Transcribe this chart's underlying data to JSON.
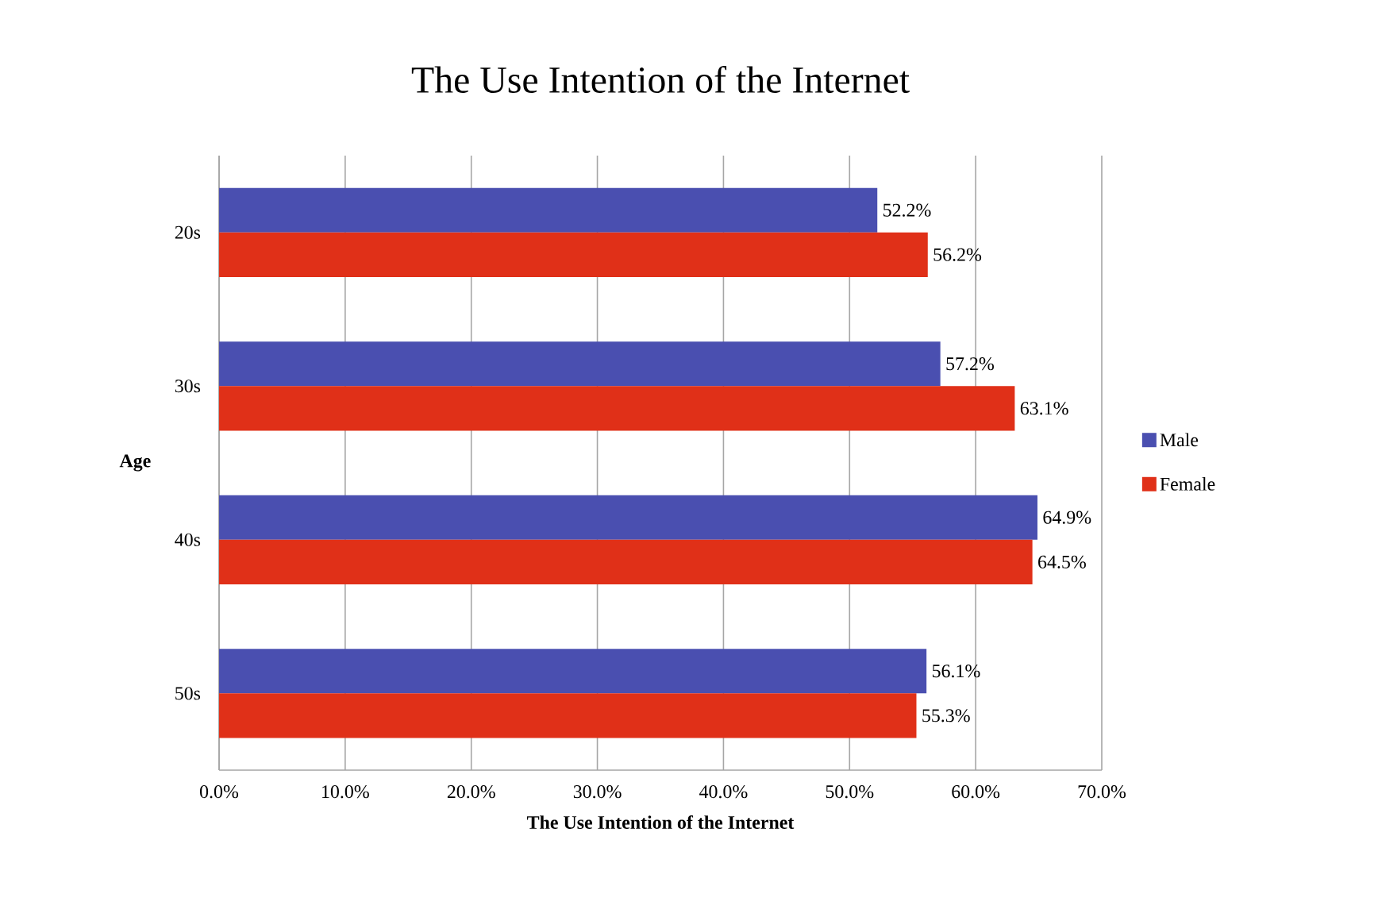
{
  "chart_data": {
    "type": "bar",
    "orientation": "horizontal",
    "title": "The Use Intention of the Internet",
    "xlabel": "The Use Intention of the Internet",
    "ylabel": "Age",
    "categories": [
      "20s",
      "30s",
      "40s",
      "50s"
    ],
    "series": [
      {
        "name": "Male",
        "color": "#4a4fb0",
        "values": [
          52.2,
          57.2,
          64.9,
          56.1
        ],
        "value_labels": [
          "52.2%",
          "57.2%",
          "64.9%",
          "56.1%"
        ]
      },
      {
        "name": "Female",
        "color": "#e03018",
        "values": [
          56.2,
          63.1,
          64.5,
          55.3
        ],
        "value_labels": [
          "56.2%",
          "63.1%",
          "64.5%",
          "55.3%"
        ]
      }
    ],
    "xlim": [
      0,
      70
    ],
    "xticks": [
      {
        "value": 0,
        "label": "0.0%"
      },
      {
        "value": 10,
        "label": "10.0%"
      },
      {
        "value": 20,
        "label": "20.0%"
      },
      {
        "value": 30,
        "label": "30.0%"
      },
      {
        "value": 40,
        "label": "40.0%"
      },
      {
        "value": 50,
        "label": "50.0%"
      },
      {
        "value": 60,
        "label": "60.0%"
      },
      {
        "value": 70,
        "label": "70.0%"
      }
    ],
    "grid": "x",
    "legend": "right"
  }
}
